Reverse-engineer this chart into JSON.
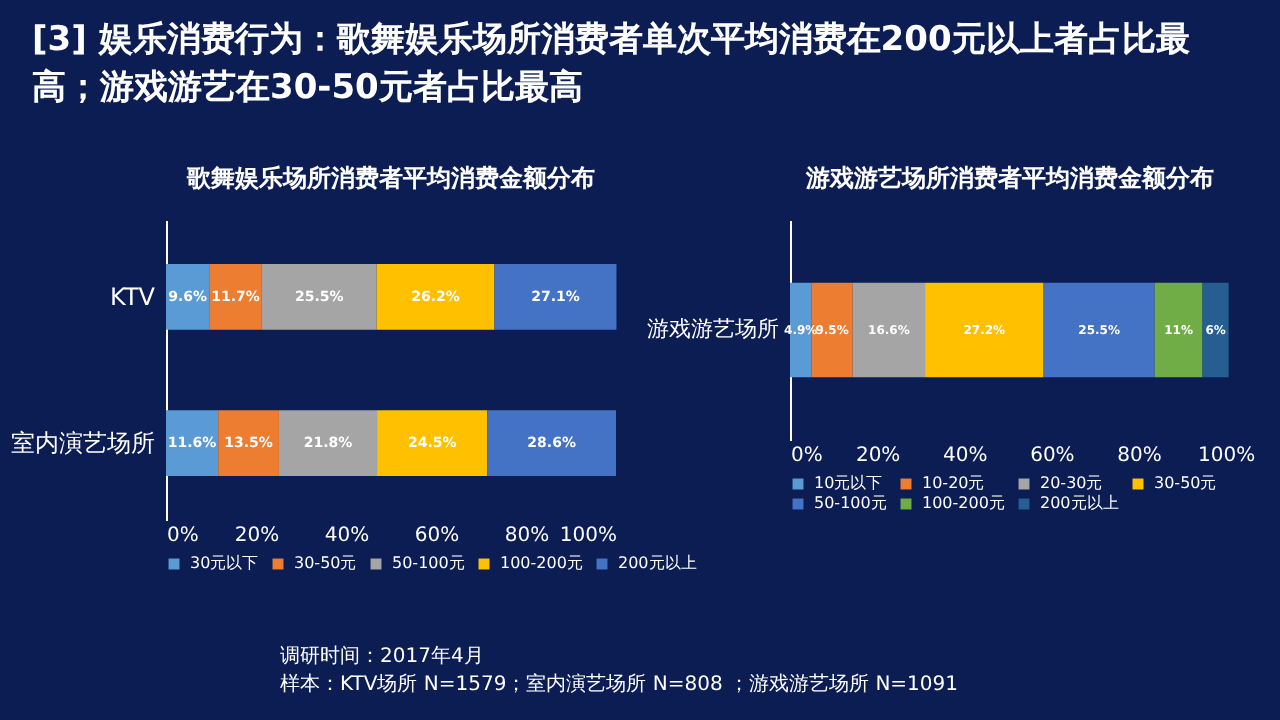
{
  "chart_data": [
    {
      "type": "bar",
      "title": "[3] 娱乐消费行为：歌舞娱乐场所消费者单次平均消费在200元以上者占比最高；游戏游艺在30-50元者占比最高",
      "subtitle": "歌舞娱乐场所消费者平均消费金额分布",
      "orientation": "horizontal",
      "stacked": true,
      "grid": false,
      "legend": "bottom",
      "categories": [
        "KTV",
        "室内演艺场所"
      ],
      "xlim": [
        0,
        100
      ],
      "xticks": [
        {
          "value": 0,
          "label": "0%"
        },
        {
          "value": 20,
          "label": "20%"
        },
        {
          "value": 40,
          "label": "40%"
        },
        {
          "value": 60,
          "label": "60%"
        },
        {
          "value": 80,
          "label": "80%"
        },
        {
          "value": 100,
          "label": "100%"
        }
      ],
      "series": [
        {
          "name": "30元以下",
          "color": "#5b9bd5",
          "values": [
            9.6,
            11.6
          ],
          "value_labels": [
            "9.6%",
            "11.6%"
          ]
        },
        {
          "name": "30-50元",
          "color": "#ed7d31",
          "values": [
            11.7,
            13.5
          ],
          "value_labels": [
            "11.7%",
            "13.5%"
          ]
        },
        {
          "name": "50-100元",
          "color": "#a5a5a5",
          "values": [
            25.5,
            21.8
          ],
          "value_labels": [
            "25.5%",
            "21.8%"
          ]
        },
        {
          "name": "100-200元",
          "color": "#ffc000",
          "values": [
            26.2,
            24.5
          ],
          "value_labels": [
            "26.2%",
            "24.5%"
          ]
        },
        {
          "name": "200元以上",
          "color": "#4472c4",
          "values": [
            27.1,
            28.6
          ],
          "value_labels": [
            "27.1%",
            "28.6%"
          ]
        }
      ],
      "annotations": [
        "调研时间：2017年4月",
        "样本：KTV场所 N=1579；室内演艺场所 N=808 ；游戏游艺场所 N=1091"
      ]
    },
    {
      "type": "bar",
      "title": "游戏游艺场所消费者平均消费金额分布",
      "orientation": "horizontal",
      "stacked": true,
      "grid": false,
      "legend": "bottom",
      "categories": [
        "游戏游艺场所"
      ],
      "xlim": [
        0,
        101
      ],
      "xticks": [
        {
          "value": 0,
          "label": "0%"
        },
        {
          "value": 20,
          "label": "20%"
        },
        {
          "value": 40,
          "label": "40%"
        },
        {
          "value": 60,
          "label": "60%"
        },
        {
          "value": 80,
          "label": "80%"
        },
        {
          "value": 100,
          "label": "100%"
        }
      ],
      "series": [
        {
          "name": "10元以下",
          "color": "#5b9bd5",
          "values": [
            4.9
          ],
          "value_labels": [
            "4.9%"
          ]
        },
        {
          "name": "10-20元",
          "color": "#ed7d31",
          "values": [
            9.5
          ],
          "value_labels": [
            "9.5%"
          ]
        },
        {
          "name": "20-30元",
          "color": "#a5a5a5",
          "values": [
            16.6
          ],
          "value_labels": [
            "16.6%"
          ]
        },
        {
          "name": "30-50元",
          "color": "#ffc000",
          "values": [
            27.2
          ],
          "value_labels": [
            "27.2%"
          ]
        },
        {
          "name": "50-100元",
          "color": "#4472c4",
          "values": [
            25.5
          ],
          "value_labels": [
            "25.5%"
          ]
        },
        {
          "name": "100-200元",
          "color": "#70ad47",
          "values": [
            11
          ],
          "value_labels": [
            "11%"
          ]
        },
        {
          "name": "200元以上",
          "color": "#255e91",
          "values": [
            6
          ],
          "value_labels": [
            "6%"
          ]
        }
      ]
    }
  ]
}
